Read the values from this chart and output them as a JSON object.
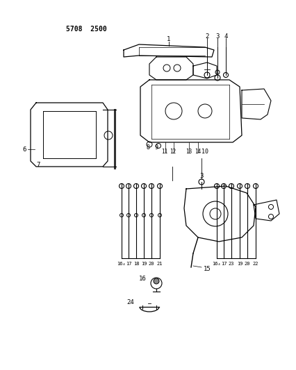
{
  "title": "5708  2500",
  "bg_color": "#ffffff",
  "line_color": "#000000",
  "figsize": [
    4.27,
    5.33
  ],
  "dpi": 100
}
